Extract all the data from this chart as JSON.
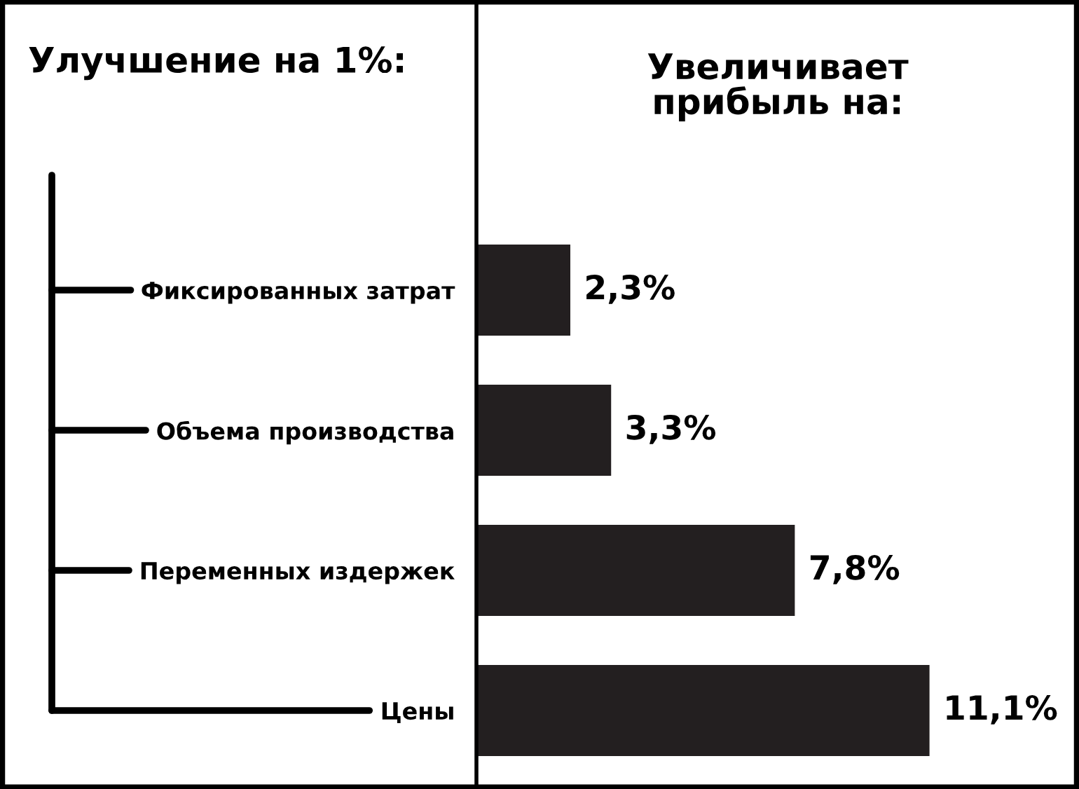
{
  "chart_data": {
    "type": "bar",
    "orientation": "horizontal",
    "title": "Увеличивает\nприбыль на:",
    "ylabel": "Улучшение на 1%:",
    "categories": [
      "Фиксированных затрат",
      "Объема производства",
      "Переменных издержек",
      "Цены"
    ],
    "values": [
      2.3,
      3.3,
      7.8,
      11.1
    ],
    "value_labels": [
      "2,3%",
      "3,3%",
      "7,8%",
      "11,1%"
    ],
    "color": "#231f20",
    "grid": false,
    "legend": false
  }
}
